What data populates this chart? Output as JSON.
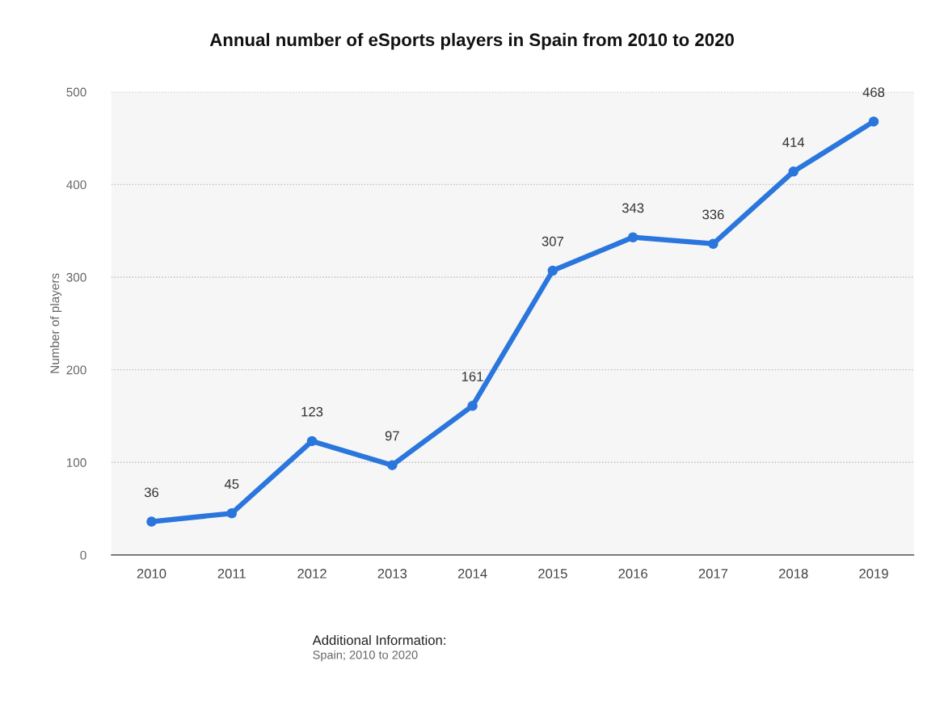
{
  "chart_data": {
    "type": "line",
    "title": "Annual number of eSports players in Spain from 2010 to 2020",
    "ylabel": "Number of players",
    "categories": [
      "2010",
      "2011",
      "2012",
      "2013",
      "2014",
      "2015",
      "2016",
      "2017",
      "2018",
      "2019"
    ],
    "series": [
      {
        "color": "#2a76dd",
        "values": [
          36,
          45,
          123,
          97,
          161,
          307,
          343,
          336,
          414,
          468
        ]
      }
    ],
    "ylim": [
      0,
      500
    ],
    "yticks": [
      0,
      100,
      200,
      300,
      400,
      500
    ],
    "grid": "y",
    "marker": "circle",
    "line_style": "solid",
    "data_labels": true,
    "annotations": [
      "Additional Information:",
      "Spain; 2010 to 2020"
    ]
  }
}
